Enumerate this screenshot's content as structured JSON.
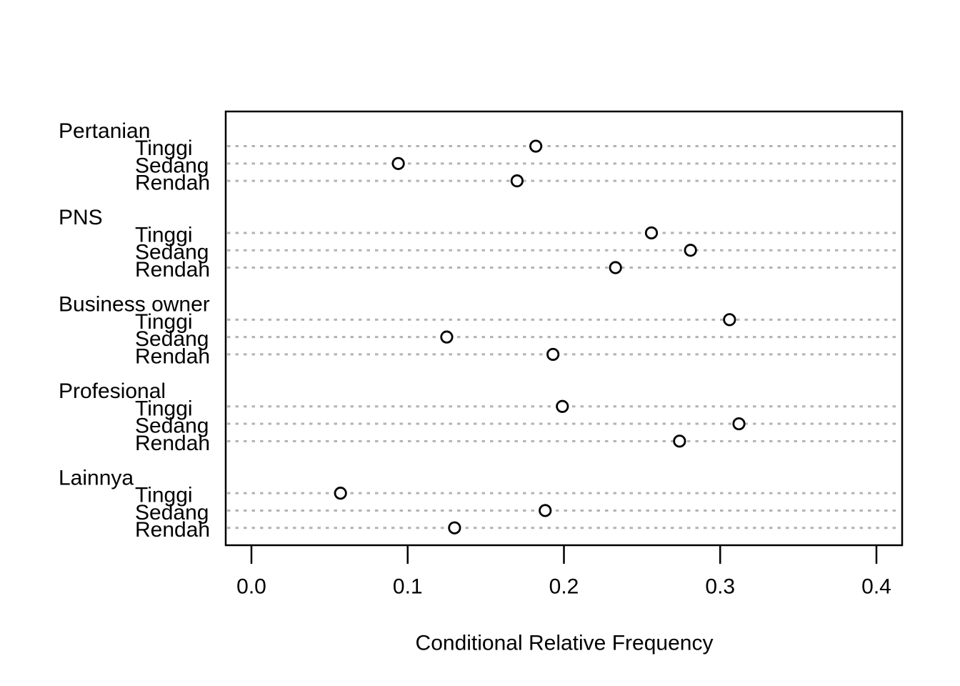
{
  "chart_data": {
    "type": "dot",
    "title": "",
    "xlabel": "Conditional Relative Frequency",
    "ylabel": "",
    "xlim": [
      -0.017,
      0.417
    ],
    "x_ticks": [
      0.0,
      0.1,
      0.2,
      0.3,
      0.4
    ],
    "x_tick_labels": [
      "0.0",
      "0.1",
      "0.2",
      "0.3",
      "0.4"
    ],
    "grid": "dotted horizontal line per item row",
    "legend": null,
    "groups": [
      {
        "label": "Pertanian",
        "items": [
          {
            "label": "Tinggi",
            "value": 0.182
          },
          {
            "label": "Sedang",
            "value": 0.094
          },
          {
            "label": "Rendah",
            "value": 0.17
          }
        ]
      },
      {
        "label": "PNS",
        "items": [
          {
            "label": "Tinggi",
            "value": 0.256
          },
          {
            "label": "Sedang",
            "value": 0.281
          },
          {
            "label": "Rendah",
            "value": 0.233
          }
        ]
      },
      {
        "label": "Business owner",
        "items": [
          {
            "label": "Tinggi",
            "value": 0.306
          },
          {
            "label": "Sedang",
            "value": 0.125
          },
          {
            "label": "Rendah",
            "value": 0.193
          }
        ]
      },
      {
        "label": "Profesional",
        "items": [
          {
            "label": "Tinggi",
            "value": 0.199
          },
          {
            "label": "Sedang",
            "value": 0.312
          },
          {
            "label": "Rendah",
            "value": 0.274
          }
        ]
      },
      {
        "label": "Lainnya",
        "items": [
          {
            "label": "Tinggi",
            "value": 0.057
          },
          {
            "label": "Sedang",
            "value": 0.188
          },
          {
            "label": "Rendah",
            "value": 0.13
          }
        ]
      }
    ]
  },
  "style": {
    "background": "#ffffff",
    "text_color": "#000000",
    "grid_color": "#b3b3b3",
    "box_color": "#000000",
    "dot_stroke": "#000000",
    "dot_fill": "#ffffff"
  }
}
